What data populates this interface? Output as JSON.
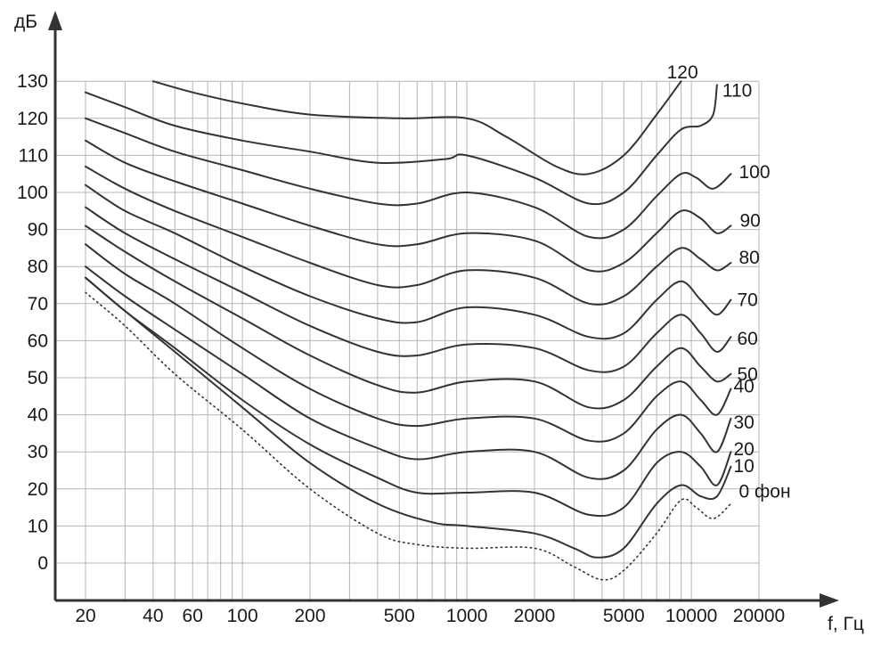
{
  "chart_data": {
    "type": "line",
    "ylabel": "дБ",
    "xlabel": "f, Гц",
    "xscale": "log",
    "ylim": [
      -10,
      130
    ],
    "xlim": [
      20,
      20000
    ],
    "grid": true,
    "y_ticks": [
      "130",
      "120",
      "110",
      "100",
      "90",
      "80",
      "70",
      "60",
      "50",
      "40",
      "30",
      "20",
      "10",
      "0"
    ],
    "y_tick_values": [
      130,
      120,
      110,
      100,
      90,
      80,
      70,
      60,
      50,
      40,
      30,
      20,
      10,
      0
    ],
    "x_ticks": [
      "20",
      "40",
      "60",
      "100",
      "200",
      "500",
      "1000",
      "2000",
      "5000",
      "10000",
      "20000"
    ],
    "x_tick_values": [
      20,
      40,
      60,
      100,
      200,
      500,
      1000,
      2000,
      5000,
      10000,
      20000
    ],
    "x_gridlines": [
      20,
      30,
      40,
      50,
      60,
      70,
      80,
      90,
      100,
      200,
      300,
      400,
      500,
      600,
      700,
      800,
      900,
      1000,
      2000,
      3000,
      4000,
      5000,
      6000,
      7000,
      8000,
      9000,
      10000,
      20000
    ],
    "series": [
      {
        "name": "120",
        "style": "solid",
        "points": [
          [
            40,
            130
          ],
          [
            60,
            127
          ],
          [
            100,
            124
          ],
          [
            200,
            121
          ],
          [
            500,
            120
          ],
          [
            1000,
            120
          ],
          [
            1500,
            115
          ],
          [
            2500,
            107
          ],
          [
            3500,
            105
          ],
          [
            5000,
            110
          ],
          [
            7000,
            121
          ],
          [
            9000,
            130
          ]
        ]
      },
      {
        "name": "110",
        "style": "solid",
        "points": [
          [
            20,
            127
          ],
          [
            30,
            123
          ],
          [
            50,
            118
          ],
          [
            100,
            114
          ],
          [
            200,
            111
          ],
          [
            400,
            108
          ],
          [
            800,
            109
          ],
          [
            1000,
            110
          ],
          [
            2000,
            104
          ],
          [
            3500,
            97
          ],
          [
            5000,
            100
          ],
          [
            7000,
            110
          ],
          [
            9000,
            117
          ],
          [
            11000,
            118
          ],
          [
            12500,
            121
          ],
          [
            13000,
            129
          ]
        ]
      },
      {
        "name": "100",
        "style": "solid",
        "points": [
          [
            20,
            120
          ],
          [
            30,
            116
          ],
          [
            50,
            111
          ],
          [
            100,
            106
          ],
          [
            200,
            101
          ],
          [
            400,
            97
          ],
          [
            600,
            97
          ],
          [
            1000,
            100
          ],
          [
            2000,
            96
          ],
          [
            3500,
            88
          ],
          [
            5000,
            90
          ],
          [
            7000,
            99
          ],
          [
            9000,
            105
          ],
          [
            10500,
            104
          ],
          [
            12500,
            101
          ],
          [
            15000,
            105
          ]
        ]
      },
      {
        "name": "90",
        "style": "solid",
        "points": [
          [
            20,
            114
          ],
          [
            30,
            108
          ],
          [
            50,
            103
          ],
          [
            100,
            97
          ],
          [
            200,
            91
          ],
          [
            400,
            86
          ],
          [
            600,
            86
          ],
          [
            1000,
            89
          ],
          [
            2000,
            87
          ],
          [
            3500,
            79
          ],
          [
            5000,
            81
          ],
          [
            7000,
            89
          ],
          [
            9000,
            95
          ],
          [
            11000,
            93
          ],
          [
            13000,
            89
          ],
          [
            15000,
            91
          ]
        ]
      },
      {
        "name": "80",
        "style": "solid",
        "points": [
          [
            20,
            107
          ],
          [
            30,
            101
          ],
          [
            50,
            95
          ],
          [
            100,
            88
          ],
          [
            200,
            81
          ],
          [
            400,
            75
          ],
          [
            600,
            75
          ],
          [
            1000,
            79
          ],
          [
            2000,
            77
          ],
          [
            3500,
            70
          ],
          [
            5000,
            72
          ],
          [
            7000,
            80
          ],
          [
            9000,
            85
          ],
          [
            11000,
            82
          ],
          [
            13000,
            79
          ],
          [
            15000,
            81
          ]
        ]
      },
      {
        "name": "70",
        "style": "solid",
        "points": [
          [
            20,
            102
          ],
          [
            30,
            95
          ],
          [
            50,
            89
          ],
          [
            100,
            80
          ],
          [
            200,
            72
          ],
          [
            400,
            66
          ],
          [
            600,
            65
          ],
          [
            1000,
            69
          ],
          [
            2000,
            67
          ],
          [
            3500,
            61
          ],
          [
            5000,
            62
          ],
          [
            7000,
            71
          ],
          [
            9000,
            76
          ],
          [
            11000,
            71
          ],
          [
            13000,
            67
          ],
          [
            15000,
            71
          ]
        ]
      },
      {
        "name": "60",
        "style": "solid",
        "points": [
          [
            20,
            96
          ],
          [
            30,
            89
          ],
          [
            50,
            82
          ],
          [
            100,
            73
          ],
          [
            200,
            64
          ],
          [
            400,
            57
          ],
          [
            600,
            56
          ],
          [
            1000,
            59
          ],
          [
            2000,
            58
          ],
          [
            3500,
            52
          ],
          [
            5000,
            53
          ],
          [
            7000,
            62
          ],
          [
            9000,
            67
          ],
          [
            11000,
            62
          ],
          [
            13000,
            57
          ],
          [
            15000,
            61
          ]
        ]
      },
      {
        "name": "50",
        "style": "solid",
        "points": [
          [
            20,
            91
          ],
          [
            30,
            84
          ],
          [
            50,
            76
          ],
          [
            100,
            66
          ],
          [
            200,
            56
          ],
          [
            400,
            48
          ],
          [
            600,
            46
          ],
          [
            1000,
            49
          ],
          [
            2000,
            49
          ],
          [
            3500,
            42
          ],
          [
            5000,
            44
          ],
          [
            7000,
            53
          ],
          [
            9000,
            58
          ],
          [
            11000,
            53
          ],
          [
            13000,
            49
          ],
          [
            15000,
            51
          ]
        ]
      },
      {
        "name": "40",
        "style": "solid",
        "points": [
          [
            20,
            86
          ],
          [
            30,
            78
          ],
          [
            50,
            70
          ],
          [
            100,
            58
          ],
          [
            200,
            47
          ],
          [
            400,
            39
          ],
          [
            600,
            37
          ],
          [
            1000,
            39
          ],
          [
            2000,
            39
          ],
          [
            3500,
            33
          ],
          [
            5000,
            35
          ],
          [
            7000,
            45
          ],
          [
            9000,
            49
          ],
          [
            11000,
            44
          ],
          [
            13000,
            40
          ],
          [
            15000,
            47
          ]
        ]
      },
      {
        "name": "30",
        "style": "solid",
        "points": [
          [
            20,
            80
          ],
          [
            30,
            72
          ],
          [
            50,
            63
          ],
          [
            100,
            51
          ],
          [
            200,
            39
          ],
          [
            400,
            31
          ],
          [
            600,
            28
          ],
          [
            1000,
            30
          ],
          [
            2000,
            30
          ],
          [
            3500,
            23
          ],
          [
            5000,
            25
          ],
          [
            7000,
            36
          ],
          [
            9000,
            40
          ],
          [
            11000,
            35
          ],
          [
            13000,
            30
          ],
          [
            15000,
            39
          ]
        ]
      },
      {
        "name": "20",
        "style": "solid",
        "points": [
          [
            20,
            77
          ],
          [
            30,
            68
          ],
          [
            50,
            58
          ],
          [
            100,
            44
          ],
          [
            200,
            32
          ],
          [
            400,
            23
          ],
          [
            600,
            19
          ],
          [
            1000,
            19
          ],
          [
            2000,
            19
          ],
          [
            3500,
            13
          ],
          [
            5000,
            15
          ],
          [
            7000,
            27
          ],
          [
            9000,
            30
          ],
          [
            11000,
            26
          ],
          [
            13000,
            21
          ],
          [
            15000,
            30
          ]
        ]
      },
      {
        "name": "10",
        "style": "solid",
        "points": [
          [
            20,
            77
          ],
          [
            30,
            68
          ],
          [
            50,
            57
          ],
          [
            100,
            42
          ],
          [
            200,
            27
          ],
          [
            400,
            16
          ],
          [
            700,
            11
          ],
          [
            1000,
            10
          ],
          [
            2000,
            8
          ],
          [
            3000,
            4
          ],
          [
            3800,
            1.5
          ],
          [
            5000,
            4
          ],
          [
            7000,
            16
          ],
          [
            9000,
            21
          ],
          [
            11000,
            18
          ],
          [
            13000,
            18
          ],
          [
            15000,
            26
          ]
        ]
      },
      {
        "name": "0 фон",
        "style": "dotted",
        "points": [
          [
            20,
            73
          ],
          [
            30,
            64
          ],
          [
            50,
            51
          ],
          [
            100,
            36
          ],
          [
            200,
            20
          ],
          [
            400,
            8
          ],
          [
            600,
            5
          ],
          [
            1000,
            4
          ],
          [
            2000,
            4
          ],
          [
            3000,
            -1
          ],
          [
            4000,
            -4.5
          ],
          [
            5000,
            -2
          ],
          [
            7000,
            8
          ],
          [
            9000,
            17
          ],
          [
            10500,
            15
          ],
          [
            12500,
            12
          ],
          [
            15000,
            16
          ]
        ]
      }
    ]
  },
  "label_positions_hint": {}
}
